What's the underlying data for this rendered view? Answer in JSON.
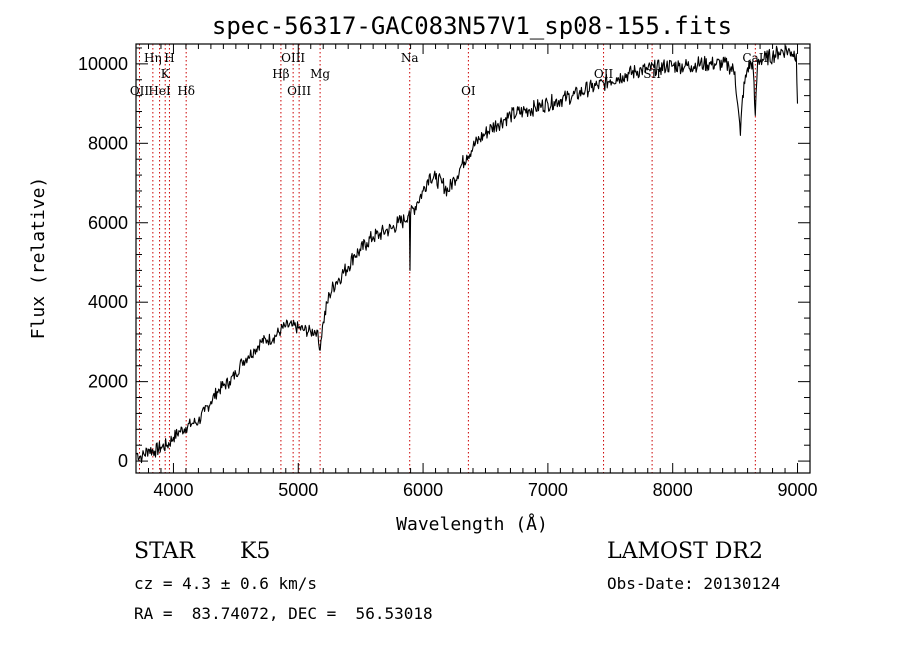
{
  "chart_data": {
    "type": "line",
    "title": "spec-56317-GAC083N57V1_sp08-155.fits",
    "xlabel": "Wavelength (Å)",
    "ylabel": "Flux (relative)",
    "xlim": [
      3700,
      9100
    ],
    "ylim": [
      -300,
      10500
    ],
    "xticks": [
      4000,
      5000,
      6000,
      7000,
      8000,
      9000
    ],
    "yticks": [
      0,
      2000,
      4000,
      6000,
      8000,
      10000
    ],
    "x_minor_step": 100,
    "y_minor_step": 400,
    "grid": false,
    "line_color": "#000000",
    "series": [
      {
        "x": [
          3700,
          3750,
          3800,
          3850,
          3900,
          3950,
          4000,
          4050,
          4100,
          4150,
          4200,
          4250,
          4300,
          4350,
          4400,
          4450,
          4500,
          4550,
          4600,
          4650,
          4700,
          4750,
          4800,
          4861,
          4900,
          4950,
          5000,
          5050,
          5100,
          5150,
          5170,
          5200,
          5250,
          5300,
          5350,
          5400,
          5450,
          5500,
          5550,
          5600,
          5650,
          5700,
          5750,
          5800,
          5850,
          5890,
          5895,
          5900,
          5950,
          6000,
          6050,
          6100,
          6150,
          6200,
          6250,
          6300,
          6350,
          6400,
          6450,
          6500,
          6550,
          6600,
          6650,
          6700,
          6750,
          6800,
          6850,
          6900,
          6950,
          7000,
          7050,
          7100,
          7150,
          7200,
          7250,
          7300,
          7350,
          7400,
          7450,
          7500,
          7550,
          7600,
          7650,
          7700,
          7750,
          7800,
          7850,
          7900,
          7950,
          8000,
          8050,
          8100,
          8150,
          8200,
          8250,
          8300,
          8350,
          8400,
          8450,
          8498,
          8520,
          8542,
          8560,
          8600,
          8640,
          8662,
          8680,
          8700,
          8750,
          8800,
          8850,
          8900,
          8950,
          8990,
          9000
        ],
        "y": [
          200,
          100,
          300,
          250,
          350,
          400,
          600,
          750,
          850,
          950,
          1000,
          1250,
          1500,
          1750,
          1900,
          2000,
          2200,
          2500,
          2650,
          2800,
          3000,
          3050,
          3100,
          3300,
          3400,
          3400,
          3350,
          3300,
          3250,
          3300,
          2800,
          3500,
          4200,
          4500,
          4700,
          4900,
          5200,
          5300,
          5500,
          5650,
          5700,
          5800,
          5850,
          6000,
          6050,
          6300,
          4800,
          6200,
          6500,
          6800,
          7200,
          7100,
          7000,
          6800,
          7100,
          7400,
          7700,
          7900,
          8100,
          8250,
          8400,
          8500,
          8600,
          8700,
          8750,
          8800,
          8850,
          8900,
          8950,
          9000,
          9050,
          9100,
          9150,
          9200,
          9250,
          9350,
          9400,
          9450,
          9500,
          9600,
          9650,
          9700,
          9750,
          9800,
          9850,
          9850,
          9900,
          9900,
          9950,
          9950,
          9950,
          9950,
          9950,
          10000,
          10000,
          10000,
          10000,
          10000,
          9950,
          9800,
          9000,
          8200,
          9200,
          9900,
          10050,
          8700,
          10050,
          10100,
          10150,
          10200,
          10300,
          10350,
          10300,
          10250,
          9000
        ]
      }
    ],
    "lines": [
      {
        "x": 3728,
        "label": "OII",
        "row": 3
      },
      {
        "x": 3835,
        "label": "Hη",
        "row": 1
      },
      {
        "x": 3889,
        "label": "HeI",
        "row": 3
      },
      {
        "x": 3934,
        "label": "K",
        "row": 2
      },
      {
        "x": 3968,
        "label": "H",
        "row": 1
      },
      {
        "x": 4102,
        "label": "Hδ",
        "row": 3
      },
      {
        "x": 4861,
        "label": "Hβ",
        "row": 2
      },
      {
        "x": 4959,
        "label": "OIII",
        "row": 1
      },
      {
        "x": 5007,
        "label": "OIII",
        "row": 3
      },
      {
        "x": 5175,
        "label": "Mg",
        "row": 2
      },
      {
        "x": 5893,
        "label": "Na",
        "row": 1
      },
      {
        "x": 6363,
        "label": "OI",
        "row": 3
      },
      {
        "x": 7446,
        "label": "OII",
        "row": 2
      },
      {
        "x": 7835,
        "label": "SII",
        "row": 2
      },
      {
        "x": 8662,
        "label": "CaII",
        "row": 1
      }
    ],
    "line_marker_color": "#cc0000"
  },
  "info": {
    "class_label": "STAR",
    "subclass_label": "K5",
    "cz_text": "cz = 4.3 ± 0.6 km/s",
    "radec_text": "RA =  83.74072, DEC =  56.53018",
    "survey_label": "LAMOST DR2",
    "obs_date_text": "Obs-Date: 20130124"
  }
}
